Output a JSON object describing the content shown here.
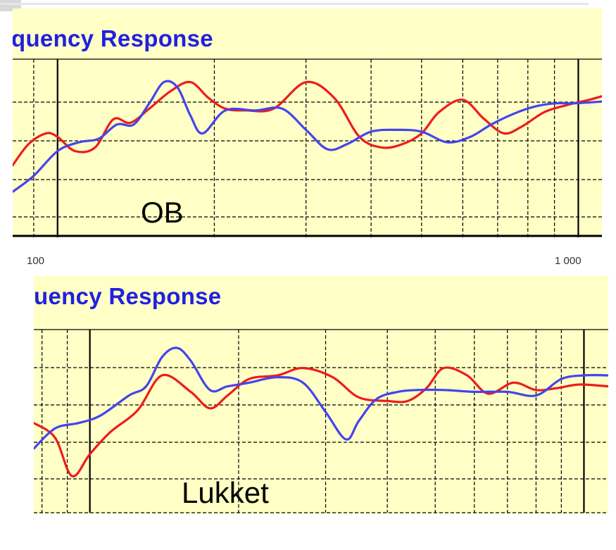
{
  "colors": {
    "background": "#ffffc6",
    "title": "#2020e0",
    "red": "#ee1c1c",
    "blue": "#4444ee",
    "grid": "#000000"
  },
  "chart_data": [
    {
      "type": "line",
      "title": "quency Response",
      "annotation": "OB",
      "xscale": "log",
      "xlim": [
        82,
        1110
      ],
      "ylim": [
        0,
        5
      ],
      "grid": true,
      "x_tick_labels": [
        "100",
        "1 000"
      ],
      "series": [
        {
          "color": "#ee1c1c",
          "x": [
            82,
            88,
            95,
            100,
            108,
            118,
            128,
            138,
            150,
            165,
            180,
            195,
            210,
            230,
            260,
            300,
            340,
            380,
            420,
            460,
            500,
            540,
            600,
            660,
            720,
            780,
            860,
            950,
            1050,
            1110
          ],
          "y": [
            2.0,
            2.6,
            2.9,
            2.8,
            2.4,
            2.5,
            3.3,
            3.2,
            3.6,
            4.1,
            4.35,
            3.9,
            3.6,
            3.55,
            3.6,
            4.35,
            3.9,
            2.8,
            2.5,
            2.6,
            2.9,
            3.5,
            3.85,
            3.3,
            2.9,
            3.1,
            3.5,
            3.7,
            3.85,
            3.95
          ]
        },
        {
          "color": "#4444ee",
          "x": [
            82,
            90,
            100,
            110,
            120,
            130,
            140,
            150,
            160,
            170,
            180,
            190,
            210,
            240,
            270,
            300,
            330,
            360,
            400,
            450,
            500,
            560,
            620,
            680,
            750,
            820,
            900,
            980,
            1110
          ],
          "y": [
            1.25,
            1.7,
            2.4,
            2.65,
            2.75,
            3.15,
            3.15,
            3.75,
            4.35,
            4.2,
            3.4,
            2.9,
            3.55,
            3.55,
            3.6,
            3.0,
            2.45,
            2.6,
            2.95,
            3.0,
            2.95,
            2.65,
            2.8,
            3.15,
            3.45,
            3.65,
            3.75,
            3.75,
            3.8
          ]
        }
      ]
    },
    {
      "type": "line",
      "title": "uency Response",
      "annotation": "Lukket",
      "xscale": "log",
      "xlim": [
        77,
        1120
      ],
      "ylim": [
        0,
        5
      ],
      "grid": true,
      "series": [
        {
          "color": "#ee1c1c",
          "x": [
            77,
            85,
            92,
            100,
            110,
            125,
            140,
            160,
            175,
            190,
            210,
            240,
            270,
            310,
            350,
            400,
            440,
            480,
            520,
            580,
            640,
            720,
            800,
            880,
            980,
            1120
          ],
          "y": [
            2.45,
            2.05,
            1.0,
            1.6,
            2.2,
            2.8,
            3.75,
            3.3,
            2.85,
            3.2,
            3.65,
            3.75,
            3.95,
            3.7,
            3.15,
            3.05,
            3.05,
            3.4,
            3.95,
            3.75,
            3.25,
            3.55,
            3.35,
            3.4,
            3.5,
            3.45
          ]
        },
        {
          "color": "#4444ee",
          "x": [
            77,
            85,
            95,
            105,
            120,
            130,
            140,
            150,
            160,
            175,
            190,
            210,
            240,
            270,
            300,
            330,
            350,
            380,
            420,
            460,
            520,
            600,
            700,
            800,
            900,
            1000,
            1120
          ],
          "y": [
            1.75,
            2.3,
            2.45,
            2.65,
            3.2,
            3.45,
            4.25,
            4.5,
            4.15,
            3.35,
            3.45,
            3.55,
            3.7,
            3.55,
            2.75,
            2.0,
            2.5,
            3.1,
            3.3,
            3.35,
            3.35,
            3.3,
            3.3,
            3.2,
            3.65,
            3.75,
            3.75
          ]
        }
      ]
    }
  ]
}
